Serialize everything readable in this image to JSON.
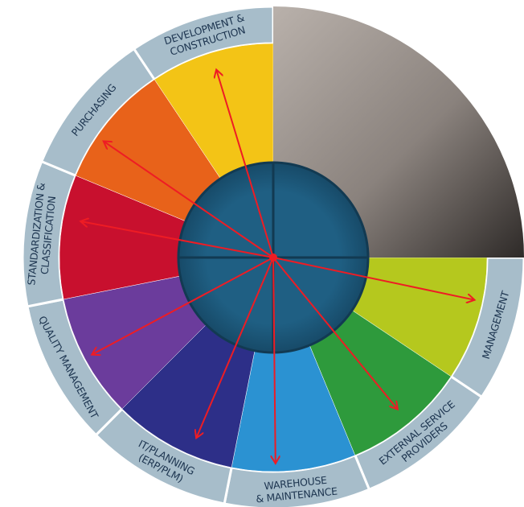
{
  "segments": [
    {
      "lines": [
        "MANAGEMENT"
      ],
      "color": "#b5c81e"
    },
    {
      "lines": [
        "EXTERNAL SERVICE",
        "PROVIDERS"
      ],
      "color": "#2e9a3c"
    },
    {
      "lines": [
        "WAREHOUSE",
        "& MAINTENANCE"
      ],
      "color": "#2b92d2"
    },
    {
      "lines": [
        "IT/PLANNING",
        "(ERP/PLM)"
      ],
      "color": "#2d2f88"
    },
    {
      "lines": [
        "QUALITY MANAGEMENT"
      ],
      "color": "#6b3c9c"
    },
    {
      "lines": [
        "STANDARDIZATION &",
        "CLASSIFICATION"
      ],
      "color": "#c8102e"
    },
    {
      "lines": [
        "PURCHASING"
      ],
      "color": "#e8621a"
    },
    {
      "lines": [
        "DEVELOPMENT &",
        "CONSTRUCTION"
      ],
      "color": "#f3c416"
    }
  ]
}
